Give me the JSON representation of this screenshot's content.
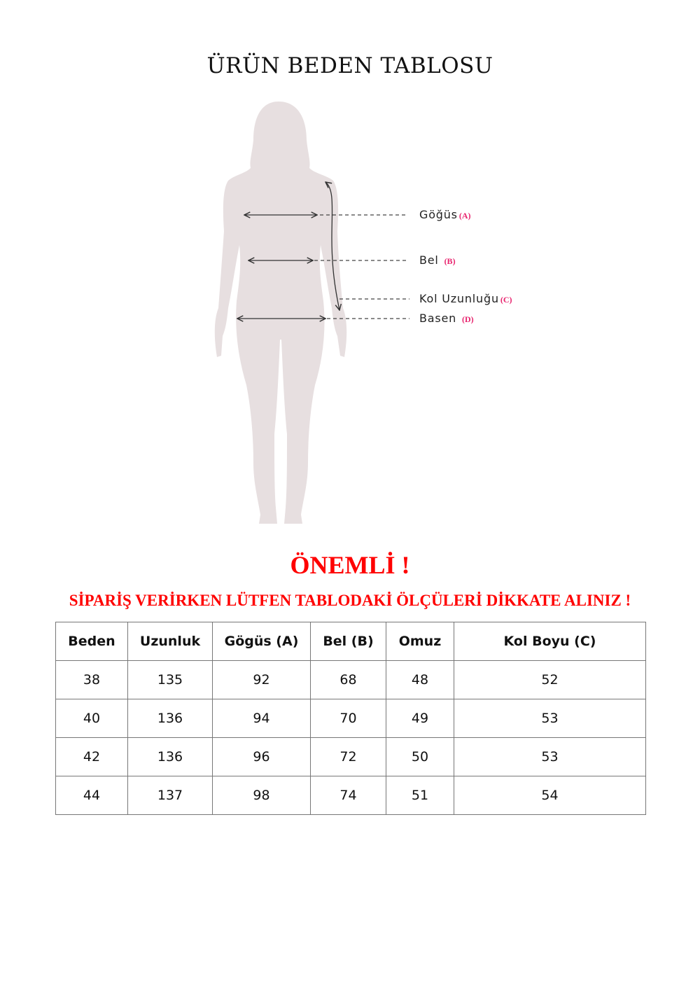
{
  "title": "ÜRÜN BEDEN TABLOSU",
  "figure": {
    "silhouette_color": "#e7dfe0",
    "labels": [
      {
        "text": "Göğüs",
        "code": "(A)"
      },
      {
        "text": "Bel",
        "code": "(B)"
      },
      {
        "text": "Kol Uzunluğu",
        "code": "(C)"
      },
      {
        "text": "Basen",
        "code": "(D)"
      }
    ]
  },
  "notice": {
    "heading": "ÖNEMLİ !",
    "message": "SİPARİŞ VERİRKEN LÜTFEN TABLODAKİ ÖLÇÜLERİ DİKKATE ALINIZ !",
    "color": "#ff0000"
  },
  "table": {
    "headers": [
      "Beden",
      "Uzunluk",
      "Gögüs (A)",
      "Bel (B)",
      "Omuz",
      "Kol Boyu (C)"
    ],
    "rows": [
      [
        "38",
        "135",
        "92",
        "68",
        "48",
        "52"
      ],
      [
        "40",
        "136",
        "94",
        "70",
        "49",
        "53"
      ],
      [
        "42",
        "136",
        "96",
        "72",
        "50",
        "53"
      ],
      [
        "44",
        "137",
        "98",
        "74",
        "51",
        "54"
      ]
    ]
  }
}
